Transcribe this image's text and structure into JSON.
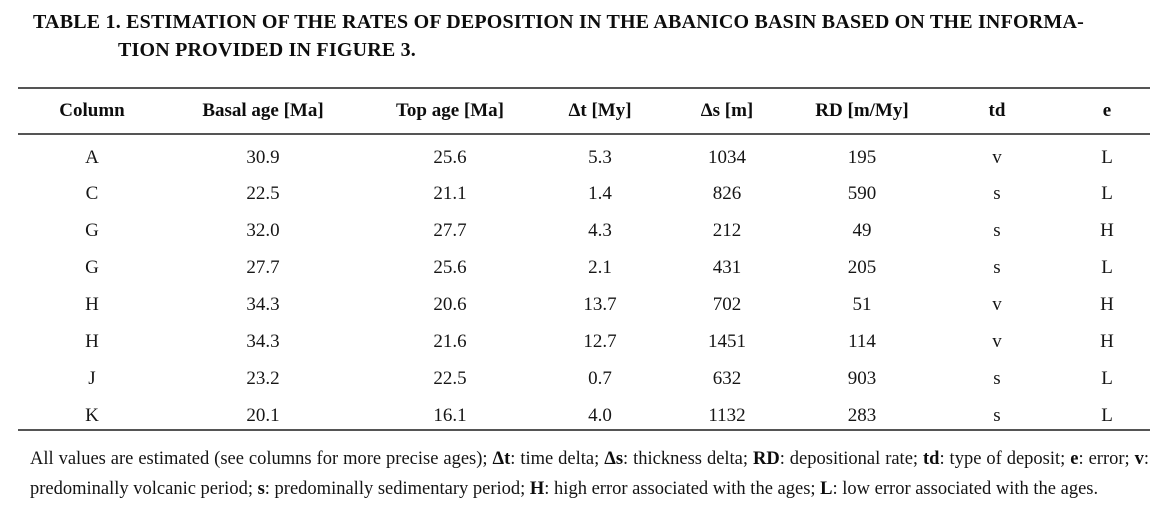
{
  "title": {
    "line1": "TABLE 1. ESTIMATION OF THE RATES OF DEPOSITION IN THE ABANICO BASIN BASED ON THE INFORMA-",
    "line2": "TION PROVIDED IN FIGURE 3."
  },
  "table": {
    "headers": [
      "Column",
      "Basal age [Ma]",
      "Top age [Ma]",
      "Δt [My]",
      "Δs [m]",
      "RD [m/My]",
      "td",
      "e"
    ],
    "rows": [
      [
        "A",
        "30.9",
        "25.6",
        "5.3",
        "1034",
        "195",
        "v",
        "L"
      ],
      [
        "C",
        "22.5",
        "21.1",
        "1.4",
        "826",
        "590",
        "s",
        "L"
      ],
      [
        "G",
        "32.0",
        "27.7",
        "4.3",
        "212",
        "49",
        "s",
        "H"
      ],
      [
        "G",
        "27.7",
        "25.6",
        "2.1",
        "431",
        "205",
        "s",
        "L"
      ],
      [
        "H",
        "34.3",
        "20.6",
        "13.7",
        "702",
        "51",
        "v",
        "H"
      ],
      [
        "H",
        "34.3",
        "21.6",
        "12.7",
        "1451",
        "114",
        "v",
        "H"
      ],
      [
        "J",
        "23.2",
        "22.5",
        "0.7",
        "632",
        "903",
        "s",
        "L"
      ],
      [
        "K",
        "20.1",
        "16.1",
        "4.0",
        "1132",
        "283",
        "s",
        "L"
      ]
    ]
  },
  "footnote": {
    "segments": [
      {
        "text": "All values are estimated (see columns for more precise ages); ",
        "bold": false
      },
      {
        "text": "Δt",
        "bold": true
      },
      {
        "text": ": time delta; ",
        "bold": false
      },
      {
        "text": "Δs",
        "bold": true
      },
      {
        "text": ": thickness delta; ",
        "bold": false
      },
      {
        "text": "RD",
        "bold": true
      },
      {
        "text": ": depositional rate; ",
        "bold": false
      },
      {
        "text": "td",
        "bold": true
      },
      {
        "text": ": type of deposit; ",
        "bold": false
      },
      {
        "text": "e",
        "bold": true
      },
      {
        "text": ": error; ",
        "bold": false
      },
      {
        "text": "v",
        "bold": true
      },
      {
        "text": ": predominally volcanic period; ",
        "bold": false
      },
      {
        "text": "s",
        "bold": true
      },
      {
        "text": ": predominally sedimentary period; ",
        "bold": false
      },
      {
        "text": "H",
        "bold": true
      },
      {
        "text": ": high error associated with the ages; ",
        "bold": false
      },
      {
        "text": "L",
        "bold": true
      },
      {
        "text": ": low error associated with the ages.",
        "bold": false
      }
    ]
  },
  "colors": {
    "text": "#111111",
    "rule": "#555555",
    "background": "#ffffff"
  }
}
